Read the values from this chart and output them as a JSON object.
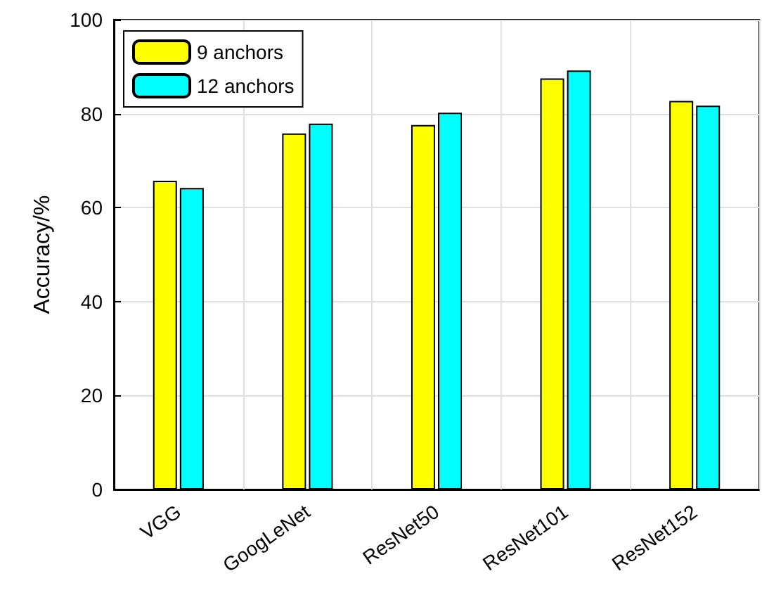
{
  "chart_data": {
    "type": "bar",
    "ylabel": "Accuracy/%",
    "categories": [
      "VGG",
      "GoogLeNet",
      "ResNet50",
      "ResNet101",
      "ResNet152"
    ],
    "series": [
      {
        "name": "9 anchors",
        "color": "#ffff00",
        "values": [
          65.7,
          75.8,
          77.6,
          87.5,
          82.7
        ]
      },
      {
        "name": "12 anchors",
        "color": "#00ffff",
        "values": [
          64.2,
          77.9,
          80.2,
          89.2,
          81.7
        ]
      }
    ],
    "ylim": [
      0,
      100
    ],
    "yticks": [
      0,
      20,
      40,
      60,
      80,
      100
    ],
    "grid": true,
    "legend": "top left"
  }
}
